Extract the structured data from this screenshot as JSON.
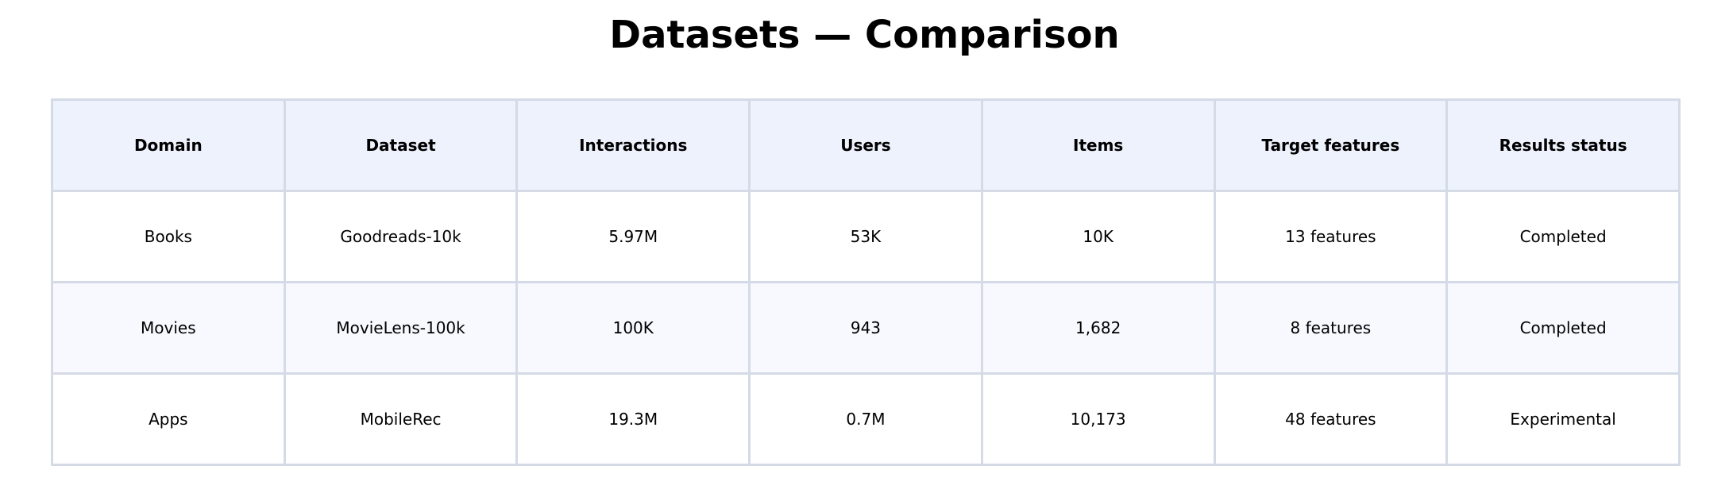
{
  "chart_data": {
    "type": "table",
    "title": "Datasets — Comparison",
    "columns": [
      "Domain",
      "Dataset",
      "Interactions",
      "Users",
      "Items",
      "Target features",
      "Results status"
    ],
    "rows": [
      [
        "Books",
        "Goodreads-10k",
        "5.97M",
        "53K",
        "10K",
        "13 features",
        "Completed"
      ],
      [
        "Movies",
        "MovieLens-100k",
        "100K",
        "943",
        "1,682",
        "8 features",
        "Completed"
      ],
      [
        "Apps",
        "MobileRec",
        "19.3M",
        "0.7M",
        "10,173",
        "48 features",
        "Experimental"
      ]
    ],
    "colors": {
      "header_bg": "#edf2fd",
      "row_alt_bg": "#f8f9fe",
      "border": "#d5dbe6"
    }
  }
}
